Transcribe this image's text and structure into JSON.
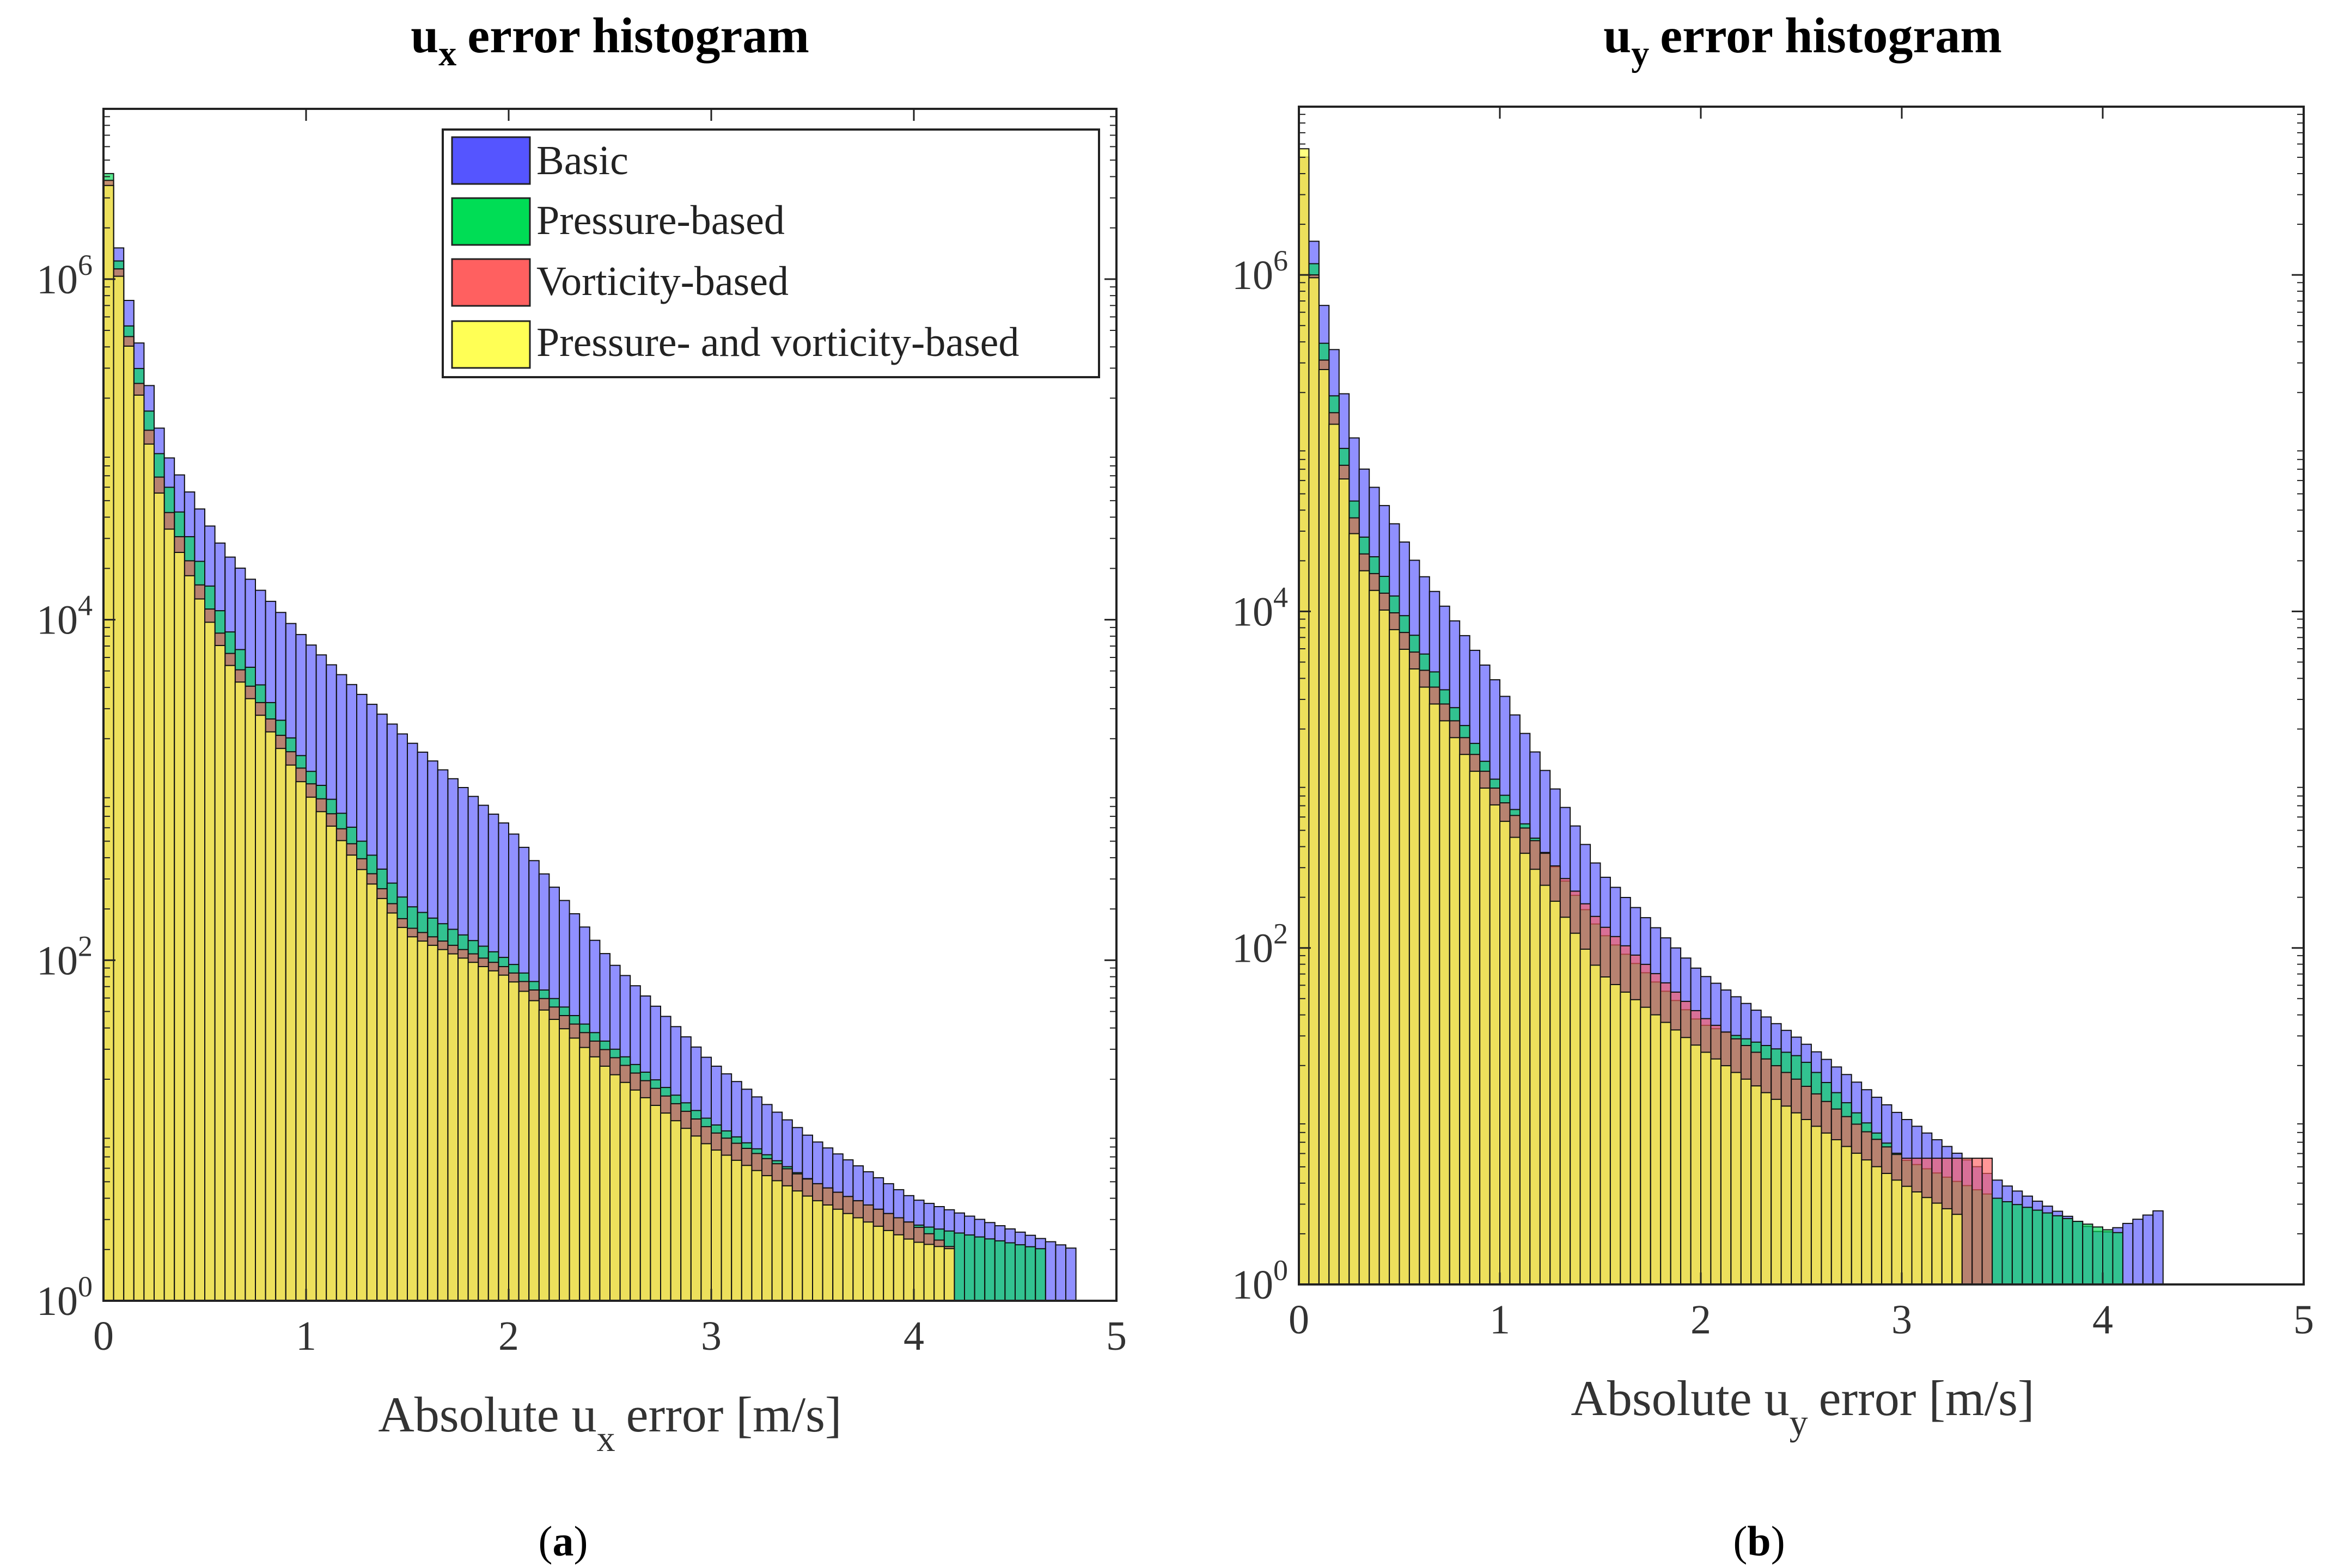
{
  "chart_data": [
    {
      "id": "a",
      "type": "bar",
      "title_main": "u",
      "title_sub": "x",
      "title_rest": "error histogram",
      "xlabel_pre": "Absolute u",
      "xlabel_sub": "x",
      "xlabel_post": "error [m/s]",
      "caption_open": "(",
      "caption_letter": "a",
      "caption_close": ")",
      "xlim": [
        0,
        5
      ],
      "ylim_log10": [
        0,
        7
      ],
      "yscale": "log",
      "x_ticks": [
        "0",
        "1",
        "2",
        "3",
        "4",
        "5"
      ],
      "y_ticks": [
        {
          "base": "10",
          "exp": "0"
        },
        {
          "base": "10",
          "exp": "2"
        },
        {
          "base": "10",
          "exp": "4"
        },
        {
          "base": "10",
          "exp": "6"
        }
      ],
      "bin_width": 0.05,
      "legend": {
        "position": "top-right",
        "entries": [
          {
            "label": "Basic",
            "color": "#5555ff"
          },
          {
            "label": "Pressure-based",
            "color": "#00dd55"
          },
          {
            "label": "Vorticity-based",
            "color": "#ff6060"
          },
          {
            "label": "Pressure- and vorticity-based",
            "color": "#ffff55"
          }
        ]
      },
      "series": [
        {
          "name": "Basic",
          "color": "#5555ff",
          "log10_anchors": [
            [
              0.025,
              6.55
            ],
            [
              0.1,
              6.0
            ],
            [
              0.3,
              5.0
            ],
            [
              0.6,
              4.4
            ],
            [
              1.0,
              3.88
            ],
            [
              1.5,
              3.3
            ],
            [
              2.0,
              2.78
            ],
            [
              2.5,
              2.0
            ],
            [
              3.0,
              1.4
            ],
            [
              3.5,
              0.95
            ],
            [
              4.0,
              0.6
            ],
            [
              4.8,
              0.3
            ]
          ],
          "max_x": 4.8
        },
        {
          "name": "Pressure-based",
          "color": "#00dd55",
          "log10_anchors": [
            [
              0.025,
              6.62
            ],
            [
              0.1,
              5.85
            ],
            [
              0.3,
              4.85
            ],
            [
              0.6,
              3.98
            ],
            [
              1.0,
              3.15
            ],
            [
              1.5,
              2.33
            ],
            [
              2.0,
              2.0
            ],
            [
              2.5,
              1.5
            ],
            [
              3.0,
              1.05
            ],
            [
              3.5,
              0.7
            ],
            [
              4.0,
              0.45
            ],
            [
              4.65,
              0.3
            ]
          ],
          "max_x": 4.65
        },
        {
          "name": "Vorticity-based",
          "color": "#ff6060",
          "log10_anchors": [
            [
              0.025,
              6.58
            ],
            [
              0.1,
              5.8
            ],
            [
              0.3,
              4.7
            ],
            [
              0.6,
              3.85
            ],
            [
              1.0,
              3.08
            ],
            [
              1.5,
              2.2
            ],
            [
              2.0,
              1.95
            ],
            [
              2.5,
              1.45
            ],
            [
              3.0,
              1.0
            ],
            [
              3.5,
              0.7
            ],
            [
              4.0,
              0.45
            ],
            [
              4.2,
              0.3
            ]
          ],
          "max_x": 4.2
        },
        {
          "name": "Pressure- and vorticity-based",
          "color": "#ffff55",
          "log10_anchors": [
            [
              0.025,
              6.55
            ],
            [
              0.1,
              5.75
            ],
            [
              0.3,
              4.6
            ],
            [
              0.6,
              3.78
            ],
            [
              1.0,
              3.0
            ],
            [
              1.5,
              2.15
            ],
            [
              2.0,
              1.9
            ],
            [
              2.5,
              1.35
            ],
            [
              3.0,
              0.9
            ],
            [
              3.5,
              0.6
            ],
            [
              4.0,
              0.35
            ],
            [
              4.2,
              0.3
            ]
          ],
          "max_x": 4.2
        }
      ]
    },
    {
      "id": "b",
      "type": "bar",
      "title_main": "u",
      "title_sub": "y",
      "title_rest": "error histogram",
      "xlabel_pre": "Absolute u",
      "xlabel_sub": "y",
      "xlabel_post": "error [m/s]",
      "caption_open": "(",
      "caption_letter": "b",
      "caption_close": ")",
      "xlim": [
        0,
        5
      ],
      "ylim_log10": [
        0,
        7
      ],
      "yscale": "log",
      "x_ticks": [
        "0",
        "1",
        "2",
        "3",
        "4",
        "5"
      ],
      "y_ticks": [
        {
          "base": "10",
          "exp": "0"
        },
        {
          "base": "10",
          "exp": "2"
        },
        {
          "base": "10",
          "exp": "4"
        },
        {
          "base": "10",
          "exp": "6"
        }
      ],
      "bin_width": 0.05,
      "series": [
        {
          "name": "Basic",
          "color": "#5555ff",
          "log10_anchors": [
            [
              0.025,
              6.7
            ],
            [
              0.1,
              5.95
            ],
            [
              0.3,
              4.9
            ],
            [
              0.6,
              4.25
            ],
            [
              1.0,
              3.55
            ],
            [
              1.5,
              2.45
            ],
            [
              2.0,
              1.85
            ],
            [
              2.5,
              1.45
            ],
            [
              3.0,
              1.0
            ],
            [
              3.5,
              0.6
            ],
            [
              4.0,
              0.3
            ],
            [
              4.3,
              0.45
            ]
          ],
          "max_x": 4.3
        },
        {
          "name": "Pressure-based",
          "color": "#00dd55",
          "log10_anchors": [
            [
              0.025,
              6.7
            ],
            [
              0.1,
              5.75
            ],
            [
              0.3,
              4.5
            ],
            [
              0.6,
              3.8
            ],
            [
              1.0,
              2.95
            ],
            [
              1.5,
              2.1
            ],
            [
              2.0,
              1.55
            ],
            [
              2.5,
              1.35
            ],
            [
              3.0,
              0.75
            ],
            [
              3.5,
              0.5
            ],
            [
              4.1,
              0.3
            ]
          ],
          "max_x": 4.1
        },
        {
          "name": "Vorticity-based",
          "color": "#ff6060",
          "log10_anchors": [
            [
              0.025,
              6.7
            ],
            [
              0.1,
              5.65
            ],
            [
              0.3,
              4.4
            ],
            [
              0.6,
              3.7
            ],
            [
              1.0,
              2.9
            ],
            [
              1.5,
              2.15
            ],
            [
              2.0,
              1.6
            ],
            [
              2.5,
              1.2
            ],
            [
              3.0,
              0.75
            ],
            [
              3.4,
              0.75
            ]
          ],
          "max_x": 3.45
        },
        {
          "name": "Pressure- and vorticity-based",
          "color": "#ffff55",
          "log10_anchors": [
            [
              0.025,
              6.75
            ],
            [
              0.1,
              5.6
            ],
            [
              0.3,
              4.3
            ],
            [
              0.6,
              3.6
            ],
            [
              1.0,
              2.8
            ],
            [
              1.5,
              1.85
            ],
            [
              2.0,
              1.4
            ],
            [
              2.5,
              1.0
            ],
            [
              3.0,
              0.6
            ],
            [
              3.3,
              0.4
            ]
          ],
          "max_x": 3.3
        }
      ]
    }
  ]
}
